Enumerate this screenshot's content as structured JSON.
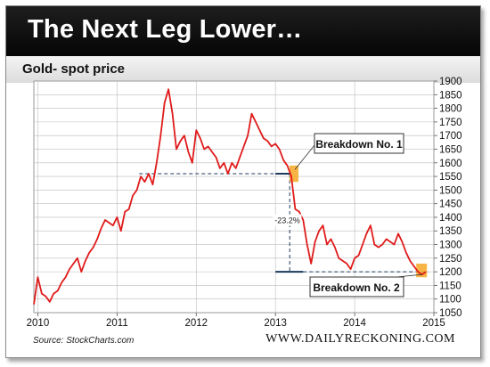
{
  "title": "The Next Leg Lower…",
  "source": "Source: StockCharts.com",
  "site": "WWW.DAILYRECKONING.COM",
  "colors": {
    "line": "#e01b1b",
    "highlight": "#f7a824",
    "guide": "#1a3a5c",
    "grid": "#bdbdbd"
  },
  "chart_data": {
    "type": "line",
    "title": "Gold- spot price",
    "xlabel": "",
    "ylabel": "",
    "grid": true,
    "xlim": [
      2009.95,
      2015.0
    ],
    "ylim": [
      1050,
      1900
    ],
    "yticks": [
      1050,
      1100,
      1150,
      1200,
      1250,
      1300,
      1350,
      1400,
      1450,
      1500,
      1550,
      1600,
      1650,
      1700,
      1750,
      1800,
      1850,
      1900
    ],
    "xticks": [
      2010,
      2011,
      2012,
      2013,
      2014,
      2015
    ],
    "series": [
      {
        "x": [
          2009.95,
          2010.0,
          2010.05,
          2010.1,
          2010.15,
          2010.2,
          2010.25,
          2010.3,
          2010.35,
          2010.4,
          2010.45,
          2010.5,
          2010.55,
          2010.6,
          2010.65,
          2010.7,
          2010.75,
          2010.8,
          2010.85,
          2010.9,
          2010.95,
          2011.0,
          2011.05,
          2011.1,
          2011.15,
          2011.2,
          2011.25,
          2011.3,
          2011.35,
          2011.4,
          2011.45,
          2011.5,
          2011.55,
          2011.6,
          2011.65,
          2011.7,
          2011.75,
          2011.8,
          2011.85,
          2011.9,
          2011.95,
          2012.0,
          2012.05,
          2012.1,
          2012.15,
          2012.2,
          2012.25,
          2012.3,
          2012.35,
          2012.4,
          2012.45,
          2012.5,
          2012.55,
          2012.6,
          2012.65,
          2012.7,
          2012.75,
          2012.8,
          2012.85,
          2012.9,
          2012.95,
          2013.0,
          2013.05,
          2013.1,
          2013.15,
          2013.2,
          2013.25,
          2013.3,
          2013.35,
          2013.4,
          2013.45,
          2013.5,
          2013.55,
          2013.6,
          2013.65,
          2013.7,
          2013.75,
          2013.8,
          2013.85,
          2013.9,
          2013.95,
          2014.0,
          2014.05,
          2014.1,
          2014.15,
          2014.2,
          2014.25,
          2014.3,
          2014.35,
          2014.4,
          2014.45,
          2014.5,
          2014.55,
          2014.6,
          2014.65,
          2014.7,
          2014.75,
          2014.8,
          2014.85,
          2014.9
        ],
        "values": [
          1080,
          1180,
          1120,
          1110,
          1090,
          1120,
          1130,
          1160,
          1180,
          1210,
          1230,
          1250,
          1200,
          1240,
          1270,
          1290,
          1320,
          1360,
          1390,
          1380,
          1370,
          1400,
          1350,
          1420,
          1430,
          1480,
          1500,
          1550,
          1530,
          1560,
          1520,
          1600,
          1700,
          1820,
          1870,
          1780,
          1650,
          1680,
          1700,
          1640,
          1600,
          1720,
          1690,
          1650,
          1660,
          1640,
          1620,
          1580,
          1600,
          1560,
          1600,
          1580,
          1620,
          1660,
          1700,
          1780,
          1750,
          1720,
          1690,
          1680,
          1660,
          1670,
          1650,
          1610,
          1590,
          1550,
          1430,
          1420,
          1390,
          1300,
          1230,
          1310,
          1350,
          1370,
          1300,
          1320,
          1290,
          1250,
          1240,
          1230,
          1210,
          1250,
          1260,
          1300,
          1340,
          1370,
          1300,
          1290,
          1300,
          1320,
          1310,
          1300,
          1340,
          1310,
          1270,
          1240,
          1220,
          1200,
          1190,
          1200
        ]
      }
    ],
    "annotations": [
      {
        "text": "Breakdown No. 1",
        "x": 2013.2,
        "y": 1560
      },
      {
        "text": "Breakdown No. 2",
        "x": 2014.85,
        "y": 1200
      },
      {
        "text": "-23.2%",
        "x": 2013.15,
        "y": 1385
      }
    ],
    "reference_levels": [
      1560,
      1200
    ]
  }
}
